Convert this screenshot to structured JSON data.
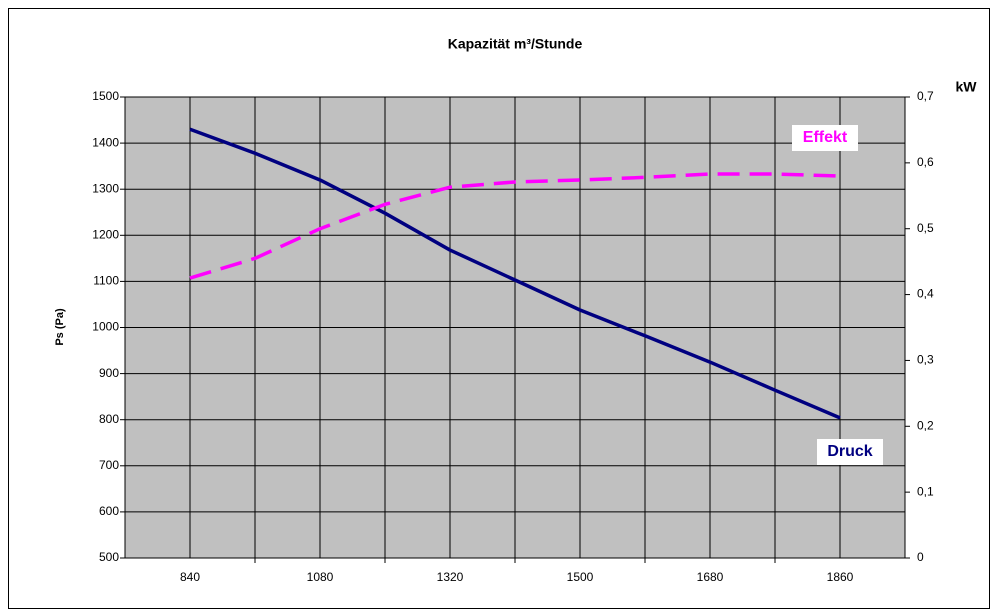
{
  "chart_data": {
    "type": "line",
    "title": "Kapazität m³/Stunde",
    "y_label": "Ps (Pa)",
    "y2_label": "kW",
    "categories": [
      "840",
      null,
      "1080",
      null,
      "1320",
      null,
      "1500",
      null,
      "1680",
      null,
      "1860"
    ],
    "series": [
      {
        "name": "Druck",
        "color": "#000080",
        "values": [
          1430,
          1378,
          1320,
          1248,
          1168,
          1103,
          1038,
          982,
          925,
          864,
          804
        ]
      },
      {
        "name": "Effekt",
        "color": "#ff00ff",
        "dashed": true,
        "axis": "y2",
        "values": [
          0.425,
          0.455,
          0.5,
          0.537,
          0.563,
          0.571,
          0.574,
          0.578,
          0.583,
          0.583,
          0.58
        ]
      }
    ],
    "ylim": [
      500,
      1500
    ],
    "yticks": [
      500,
      600,
      700,
      800,
      900,
      1000,
      1100,
      1200,
      1300,
      1400,
      1500
    ],
    "y2lim": [
      0,
      0.7
    ],
    "y2ticks": [
      0,
      {
        "value": 0.1,
        "label": "0,1"
      },
      {
        "value": 0.2,
        "label": "0,2"
      },
      {
        "value": 0.3,
        "label": "0,3"
      },
      {
        "value": 0.4,
        "label": "0,4"
      },
      {
        "value": 0.5,
        "label": "0,5"
      },
      {
        "value": 0.6,
        "label": "0,6"
      },
      {
        "value": 0.7,
        "label": "0,7"
      }
    ],
    "grid": true,
    "background": "#c0c0c0"
  }
}
